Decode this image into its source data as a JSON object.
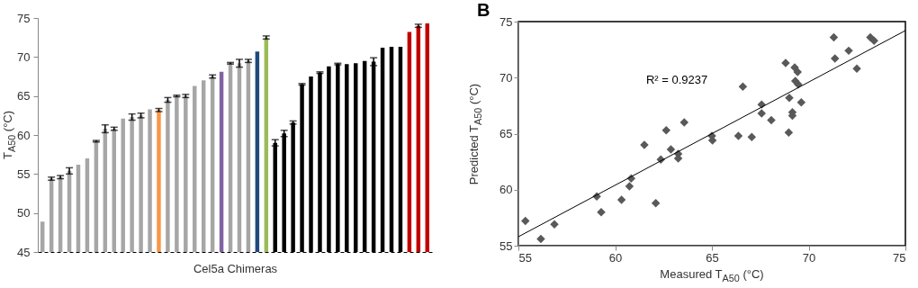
{
  "chart_data": [
    {
      "type": "bar",
      "xlabel": "Cel5a Chimeras",
      "ylabel": "T$_{A50}$ (°C)",
      "categories": [
        null,
        null,
        null,
        null,
        null,
        null,
        null,
        null,
        null,
        null,
        null,
        null,
        null,
        null,
        null,
        null,
        null,
        null,
        null,
        null,
        null,
        null,
        null,
        null,
        null,
        null,
        null,
        null,
        null,
        null,
        null,
        null,
        null,
        null,
        null,
        null,
        null,
        null,
        null,
        null,
        null,
        null,
        null,
        null
      ],
      "values": [
        48.9,
        54.4,
        54.6,
        55.4,
        56.2,
        57.0,
        59.2,
        60.8,
        60.8,
        62.1,
        62.3,
        62.5,
        63.3,
        63.2,
        64.5,
        65.0,
        65.0,
        66.3,
        67.0,
        67.5,
        68.1,
        69.2,
        69.2,
        69.5,
        70.7,
        72.5,
        59.0,
        60.2,
        61.6,
        66.5,
        67.5,
        68.0,
        68.8,
        69.1,
        69.1,
        69.2,
        69.5,
        69.4,
        71.2,
        71.3,
        71.3,
        73.2,
        74.0,
        74.3
      ],
      "errors": [
        null,
        0.2,
        0.2,
        0.4,
        null,
        null,
        0.1,
        0.5,
        0.2,
        null,
        0.4,
        0.3,
        null,
        0.2,
        0.3,
        0.1,
        0.2,
        null,
        null,
        0.2,
        null,
        0.1,
        0.5,
        0.2,
        null,
        0.2,
        0.4,
        0.4,
        0.2,
        0.1,
        null,
        0.1,
        null,
        0.1,
        null,
        null,
        null,
        0.5,
        null,
        null,
        null,
        null,
        0.2,
        null
      ],
      "colors": [
        "#a6a6a6",
        "#a6a6a6",
        "#a6a6a6",
        "#a6a6a6",
        "#a6a6a6",
        "#a6a6a6",
        "#a6a6a6",
        "#a6a6a6",
        "#a6a6a6",
        "#a6a6a6",
        "#a6a6a6",
        "#a6a6a6",
        "#a6a6a6",
        "#f79646",
        "#a6a6a6",
        "#a6a6a6",
        "#a6a6a6",
        "#a6a6a6",
        "#a6a6a6",
        "#a6a6a6",
        "#8064a2",
        "#a6a6a6",
        "#a6a6a6",
        "#a6a6a6",
        "#1f497d",
        "#9bbb59",
        "#000000",
        "#000000",
        "#000000",
        "#000000",
        "#000000",
        "#000000",
        "#000000",
        "#000000",
        "#000000",
        "#000000",
        "#000000",
        "#000000",
        "#000000",
        "#000000",
        "#000000",
        "#c00000",
        "#c00000",
        "#c00000"
      ],
      "ylim": [
        45,
        75
      ],
      "yticks": [
        45,
        50,
        55,
        60,
        65,
        70,
        75
      ],
      "tick_labels": "y",
      "grid": false
    },
    {
      "type": "scatter",
      "title": "B",
      "xlabel": "Measured T$_{A50}$ (°C)",
      "ylabel": "Predicted T$_{A50}$ (°C)",
      "annotations": [
        "R² = 0.9237"
      ],
      "grid": false,
      "xlim": [
        55,
        75
      ],
      "xticks": [
        55,
        60,
        65,
        70,
        75
      ],
      "ylim": [
        55,
        75
      ],
      "yticks": [
        55,
        60,
        65,
        70,
        75
      ],
      "series": [
        {
          "type": "scatter",
          "marker": "diamond",
          "color": "#595959",
          "x": [
            55.36,
            56.16,
            56.86,
            59.05,
            59.28,
            60.33,
            60.74,
            60.83,
            61.51,
            62.1,
            62.36,
            62.64,
            62.88,
            63.26,
            63.26,
            63.57,
            65.0,
            65.03,
            66.37,
            66.6,
            67.06,
            67.57,
            67.57,
            68.07,
            68.81,
            68.97,
            69.0,
            69.16,
            69.16,
            69.28,
            69.43,
            69.31,
            69.46,
            69.62,
            71.3,
            71.36,
            72.07,
            72.49,
            73.19,
            73.38
          ],
          "values": [
            57.2,
            55.6,
            56.9,
            59.4,
            58.0,
            59.1,
            60.3,
            61.0,
            64.0,
            58.8,
            62.7,
            65.3,
            63.6,
            63.2,
            62.8,
            66.0,
            64.8,
            64.4,
            64.8,
            69.2,
            64.7,
            67.6,
            66.8,
            66.2,
            71.3,
            65.1,
            68.2,
            66.9,
            66.6,
            70.9,
            70.5,
            69.7,
            69.4,
            67.8,
            73.6,
            71.7,
            72.4,
            70.8,
            73.6,
            73.3
          ]
        },
        {
          "type": "line",
          "marker": "none",
          "color": "#000000",
          "x": [
            55,
            75
          ],
          "values": [
            55.8,
            74.2
          ]
        }
      ]
    }
  ]
}
